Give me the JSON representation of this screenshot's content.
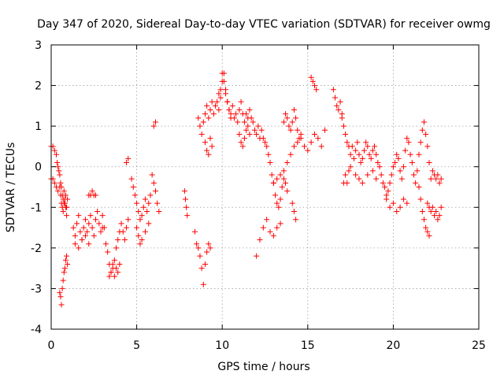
{
  "chart_data": {
    "type": "scatter",
    "title": "Day 347 of 2020, Sidereal Day-to-day VTEC variation (SDTVAR) for receiver owmg",
    "xlabel": "GPS time / hours",
    "ylabel": "SDTVAR / TECUs",
    "xlim": [
      0,
      25
    ],
    "ylim": [
      -4,
      3
    ],
    "xticks": [
      0,
      5,
      10,
      15,
      20,
      25
    ],
    "yticks": [
      -4,
      -3,
      -2,
      -1,
      0,
      1,
      2,
      3
    ],
    "grid": true,
    "marker": "plus",
    "series": [
      {
        "name": "SDTVAR",
        "color": "#ff0000",
        "x": [
          0.0,
          0.1,
          0.2,
          0.3,
          0.35,
          0.4,
          0.45,
          0.5,
          0.55,
          0.6,
          0.65,
          0.7,
          0.75,
          0.8,
          0.85,
          0.9,
          0.95,
          0.0,
          0.1,
          0.2,
          0.3,
          0.4,
          0.5,
          0.55,
          0.6,
          0.65,
          0.7,
          0.75,
          0.8,
          0.85,
          0.9,
          0.5,
          0.55,
          0.6,
          0.65,
          0.7,
          0.75,
          0.8,
          0.85,
          0.9,
          0.95,
          1.3,
          1.4,
          1.5,
          1.6,
          1.7,
          1.8,
          1.9,
          2.0,
          2.1,
          2.2,
          2.3,
          2.4,
          2.5,
          2.6,
          2.7,
          2.8,
          2.9,
          3.0,
          1.4,
          1.6,
          1.8,
          2.0,
          2.2,
          2.2,
          2.3,
          2.4,
          2.5,
          2.6,
          3.0,
          3.1,
          3.2,
          3.3,
          3.4,
          3.5,
          3.6,
          3.7,
          3.8,
          3.9,
          4.0,
          4.1,
          4.2,
          4.3,
          4.4,
          4.5,
          3.4,
          3.5,
          3.6,
          3.7,
          3.8,
          3.9,
          4.0,
          4.4,
          4.5,
          4.7,
          4.8,
          4.9,
          5.0,
          5.1,
          5.2,
          5.3,
          5.4,
          5.5,
          5.6,
          5.7,
          5.8,
          5.0,
          5.1,
          5.2,
          5.3,
          5.5,
          5.7,
          5.9,
          6.0,
          6.1,
          6.2,
          6.3,
          6.0,
          6.1,
          7.8,
          7.85,
          7.9,
          7.95,
          8.4,
          8.5,
          8.6,
          8.7,
          8.8,
          8.9,
          9.0,
          9.1,
          9.2,
          9.3,
          8.6,
          8.7,
          8.8,
          8.9,
          9.0,
          9.1,
          9.2,
          9.3,
          9.4,
          9.5,
          9.6,
          9.7,
          9.8,
          9.9,
          10.0,
          10.1,
          10.2,
          10.3,
          10.4,
          10.5,
          10.6,
          10.7,
          10.8,
          10.9,
          11.0,
          11.1,
          11.2,
          11.3,
          11.4,
          11.5,
          11.6,
          11.7,
          11.8,
          11.9,
          12.0,
          12.1,
          12.2,
          9.0,
          9.1,
          9.2,
          9.3,
          9.4,
          9.8,
          9.9,
          10.0,
          10.1,
          10.2,
          10.3,
          10.4,
          10.5,
          11.0,
          11.1,
          11.2,
          11.3,
          11.4,
          11.5,
          11.6,
          12.0,
          12.2,
          12.4,
          12.6,
          12.8,
          13.0,
          13.2,
          13.4,
          12.3,
          12.4,
          12.5,
          12.6,
          12.7,
          12.8,
          12.9,
          13.0,
          13.1,
          13.2,
          13.3,
          13.4,
          13.5,
          13.6,
          13.7,
          13.8,
          13.6,
          13.7,
          13.8,
          13.9,
          14.0,
          14.1,
          14.2,
          14.3,
          14.4,
          14.5,
          14.6,
          13.0,
          13.2,
          13.4,
          13.6,
          13.8,
          14.0,
          14.2,
          14.4,
          14.6,
          14.8,
          15.0,
          15.2,
          15.4,
          15.6,
          15.8,
          16.0,
          14.1,
          14.2,
          14.3,
          15.2,
          15.3,
          15.4,
          15.5,
          16.5,
          16.6,
          16.7,
          16.8,
          16.9,
          17.0,
          17.0,
          17.1,
          17.2,
          17.3,
          17.4,
          17.5,
          17.6,
          17.7,
          17.8,
          17.9,
          18.0,
          18.1,
          18.2,
          18.3,
          18.4,
          18.5,
          18.6,
          18.7,
          18.8,
          18.9,
          19.0,
          19.1,
          19.2,
          17.2,
          17.3,
          17.4,
          17.5,
          17.8,
          18.0,
          18.2,
          18.5,
          18.8,
          19.0,
          17.1,
          19.3,
          19.4,
          19.5,
          19.6,
          19.7,
          19.8,
          19.9,
          20.0,
          20.1,
          20.2,
          20.3,
          20.4,
          20.5,
          20.6,
          20.7,
          20.8,
          20.9,
          21.0,
          21.1,
          21.2,
          21.3,
          21.4,
          21.5,
          21.6,
          21.7,
          21.8,
          21.9,
          22.0,
          22.1,
          22.2,
          19.6,
          19.8,
          20.0,
          20.2,
          20.4,
          20.6,
          20.8,
          21.5,
          21.6,
          21.7,
          21.8,
          21.9,
          22.0,
          22.1,
          22.0,
          22.1,
          22.2,
          22.3,
          22.4,
          22.5,
          22.6,
          22.7,
          22.8,
          22.3,
          22.4,
          22.5,
          22.6,
          22.7,
          22.8
        ],
        "y": [
          0.5,
          0.5,
          0.4,
          0.3,
          0.1,
          0.0,
          -0.1,
          -0.2,
          -0.4,
          -0.5,
          -0.7,
          -0.8,
          -0.6,
          -0.9,
          -0.7,
          -1.0,
          -0.8,
          -0.3,
          -0.3,
          -0.4,
          -0.5,
          -0.6,
          -0.5,
          -0.7,
          -0.9,
          -1.0,
          -1.1,
          -0.9,
          -0.8,
          -1.0,
          -1.2,
          -3.1,
          -3.2,
          -3.4,
          -3.0,
          -2.8,
          -2.6,
          -2.5,
          -2.3,
          -2.2,
          -2.4,
          -1.5,
          -1.7,
          -1.4,
          -1.2,
          -1.6,
          -1.8,
          -1.5,
          -1.3,
          -1.6,
          -1.4,
          -1.2,
          -1.5,
          -1.7,
          -1.3,
          -1.1,
          -1.4,
          -1.6,
          -1.5,
          -1.9,
          -2.0,
          -1.8,
          -1.7,
          -1.9,
          -0.7,
          -0.7,
          -0.6,
          -0.7,
          -0.7,
          -1.2,
          -1.5,
          -1.9,
          -2.1,
          -2.4,
          -2.6,
          -2.5,
          -2.3,
          -2.0,
          -1.8,
          -1.6,
          -1.4,
          -1.6,
          -1.8,
          -1.5,
          -1.3,
          -2.7,
          -2.6,
          -2.4,
          -2.7,
          -2.5,
          -2.6,
          -2.4,
          0.1,
          0.2,
          -0.3,
          -0.5,
          -0.7,
          -0.9,
          -1.1,
          -1.3,
          -1.2,
          -1.0,
          -0.8,
          -1.1,
          -0.9,
          -0.7,
          -1.5,
          -1.7,
          -1.9,
          -1.8,
          -1.6,
          -1.4,
          -0.2,
          -0.4,
          -0.6,
          -0.9,
          -1.1,
          1.0,
          1.1,
          -0.6,
          -0.8,
          -1.0,
          -1.2,
          -1.6,
          -1.9,
          -2.0,
          -2.2,
          -2.5,
          -2.9,
          -2.4,
          -2.1,
          -1.9,
          -2.0,
          1.2,
          1.0,
          0.8,
          1.1,
          1.3,
          1.5,
          1.2,
          1.4,
          1.6,
          1.3,
          1.5,
          1.6,
          1.8,
          1.9,
          2.3,
          2.1,
          1.8,
          1.6,
          1.4,
          1.3,
          1.5,
          1.2,
          1.3,
          1.1,
          1.4,
          1.6,
          1.3,
          1.1,
          1.3,
          1.2,
          1.4,
          1.2,
          1.1,
          0.9,
          0.8,
          1.0,
          0.7,
          0.6,
          0.4,
          0.3,
          0.7,
          0.5,
          1.4,
          1.7,
          2.1,
          2.3,
          1.9,
          1.6,
          1.4,
          1.2,
          0.8,
          0.6,
          0.5,
          0.7,
          0.9,
          1.0,
          0.8,
          -2.2,
          -1.8,
          -1.5,
          -1.3,
          -1.6,
          -1.7,
          -1.5,
          -1.4,
          0.9,
          0.7,
          0.6,
          0.5,
          0.3,
          0.1,
          -0.2,
          -0.4,
          -0.7,
          -0.9,
          -1.0,
          -0.8,
          -0.5,
          -0.3,
          -0.4,
          -0.6,
          1.1,
          1.3,
          1.2,
          1.0,
          0.9,
          1.1,
          1.4,
          1.2,
          0.9,
          0.7,
          0.8,
          -0.4,
          -0.3,
          -0.2,
          -0.1,
          0.1,
          0.3,
          0.5,
          0.6,
          0.7,
          0.5,
          0.4,
          0.6,
          0.8,
          0.7,
          0.5,
          0.9,
          -0.9,
          -1.1,
          -1.3,
          2.2,
          2.1,
          2.0,
          1.9,
          1.9,
          1.7,
          1.5,
          1.4,
          1.6,
          1.3,
          1.2,
          1.0,
          0.8,
          0.6,
          0.5,
          0.3,
          0.5,
          0.2,
          0.4,
          0.6,
          0.3,
          0.1,
          0.2,
          0.4,
          0.6,
          0.5,
          0.3,
          0.2,
          0.4,
          0.5,
          0.3,
          0.1,
          0.0,
          -0.2,
          -0.4,
          -0.1,
          0.0,
          -0.2,
          -0.3,
          -0.4,
          -0.2,
          -0.1,
          -0.3,
          -0.4,
          -0.2,
          -0.4,
          -0.5,
          -0.7,
          -0.6,
          -0.4,
          -0.2,
          0.0,
          0.1,
          0.3,
          0.2,
          -0.1,
          -0.3,
          0.0,
          0.4,
          0.7,
          0.6,
          0.3,
          0.1,
          -0.2,
          -0.4,
          -0.1,
          0.3,
          0.6,
          0.9,
          1.1,
          0.8,
          0.5,
          0.1,
          -0.3,
          -0.8,
          -1.0,
          -0.9,
          -1.1,
          -1.0,
          -0.8,
          -0.9,
          -0.5,
          -0.8,
          -1.1,
          -1.3,
          -1.5,
          -1.6,
          -1.7,
          -0.9,
          -1.0,
          -1.1,
          -1.0,
          -1.2,
          -1.1,
          -1.3,
          -1.2,
          -1.0,
          -0.1,
          -0.2,
          -0.3,
          -0.2,
          -0.4,
          -0.3
        ]
      }
    ]
  }
}
